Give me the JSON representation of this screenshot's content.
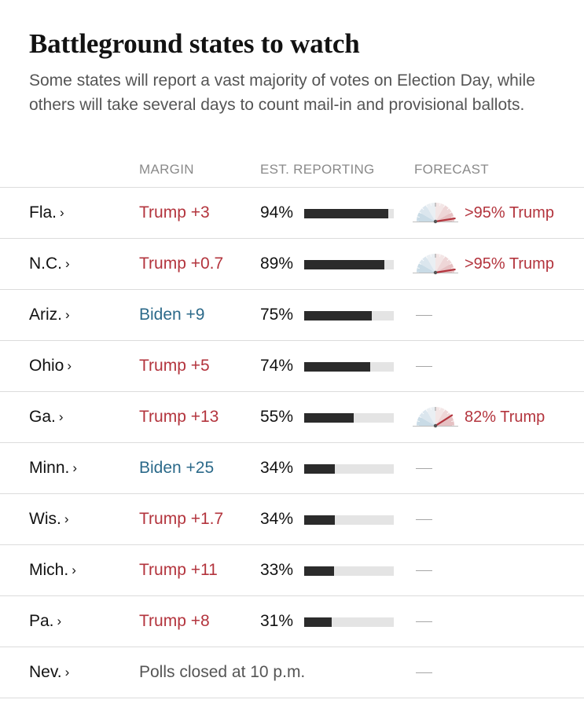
{
  "header": {
    "title": "Battleground states to watch",
    "subtitle": "Some states will report a vast majority of votes on Election Day, while others will take several days to count mail-in and provisional ballots."
  },
  "columns": {
    "margin": "MARGIN",
    "reporting": "EST. REPORTING",
    "forecast": "FORECAST"
  },
  "colors": {
    "trump": "#b3343d",
    "biden": "#2c6a8a",
    "bar_fill": "#2b2b2b",
    "bar_track": "#e4e4e4",
    "muted": "#8a8a8a"
  },
  "chevron": "›",
  "rows": [
    {
      "state": "Fla.",
      "margin": "Trump +3",
      "party": "trump",
      "reporting": "94%",
      "reporting_value": 94,
      "forecast": ">95% Trump",
      "forecast_value": 95,
      "forecast_icon": "gauge-icon"
    },
    {
      "state": "N.C.",
      "margin": "Trump +0.7",
      "party": "trump",
      "reporting": "89%",
      "reporting_value": 89,
      "forecast": ">95% Trump",
      "forecast_value": 95,
      "forecast_icon": "gauge-icon"
    },
    {
      "state": "Ariz.",
      "margin": "Biden +9",
      "party": "biden",
      "reporting": "75%",
      "reporting_value": 75,
      "forecast": "—"
    },
    {
      "state": "Ohio",
      "margin": "Trump +5",
      "party": "trump",
      "reporting": "74%",
      "reporting_value": 74,
      "forecast": "—"
    },
    {
      "state": "Ga.",
      "margin": "Trump +13",
      "party": "trump",
      "reporting": "55%",
      "reporting_value": 55,
      "forecast": "82% Trump",
      "forecast_value": 82,
      "forecast_icon": "gauge-icon"
    },
    {
      "state": "Minn.",
      "margin": "Biden +25",
      "party": "biden",
      "reporting": "34%",
      "reporting_value": 34,
      "forecast": "—"
    },
    {
      "state": "Wis.",
      "margin": "Trump +1.7",
      "party": "trump",
      "reporting": "34%",
      "reporting_value": 34,
      "forecast": "—"
    },
    {
      "state": "Mich.",
      "margin": "Trump +11",
      "party": "trump",
      "reporting": "33%",
      "reporting_value": 33,
      "forecast": "—"
    },
    {
      "state": "Pa.",
      "margin": "Trump +8",
      "party": "trump",
      "reporting": "31%",
      "reporting_value": 31,
      "forecast": "—"
    },
    {
      "state": "Nev.",
      "note": "Polls closed at 10 p.m.",
      "forecast": "—"
    }
  ]
}
